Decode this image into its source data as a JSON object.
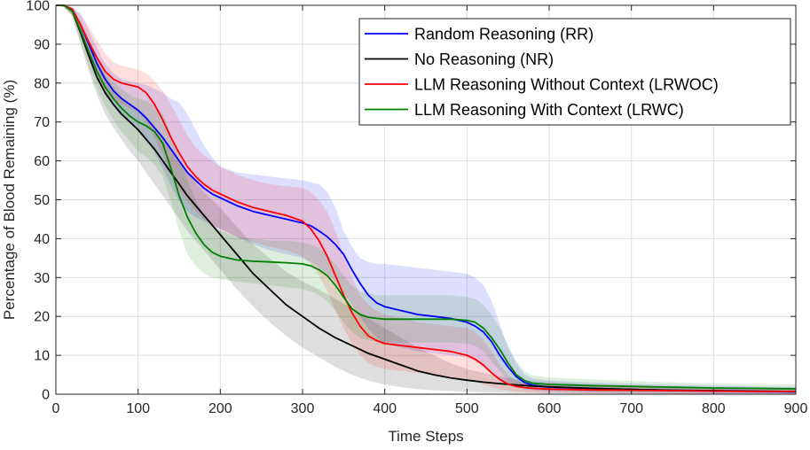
{
  "chart_data": {
    "type": "line",
    "title": "",
    "xlabel": "Time Steps",
    "ylabel": "Percentage of Blood Remaining (%)",
    "xlim": [
      0,
      900
    ],
    "ylim": [
      0,
      100
    ],
    "x_ticks": [
      0,
      100,
      200,
      300,
      400,
      500,
      600,
      700,
      800,
      900
    ],
    "y_ticks": [
      0,
      10,
      20,
      30,
      40,
      50,
      60,
      70,
      80,
      90,
      100
    ],
    "grid": true,
    "legend_position": "top-right",
    "shaded_bands": true,
    "series": [
      {
        "name": "Random Reasoning (RR)",
        "color": "#0000ff",
        "x": [
          0,
          10,
          20,
          30,
          40,
          50,
          60,
          70,
          80,
          90,
          100,
          110,
          120,
          130,
          140,
          150,
          160,
          170,
          180,
          190,
          200,
          220,
          240,
          260,
          280,
          300,
          310,
          320,
          330,
          340,
          350,
          360,
          370,
          380,
          390,
          400,
          420,
          440,
          460,
          480,
          500,
          510,
          520,
          530,
          540,
          550,
          560,
          570,
          580,
          600,
          650,
          700,
          750,
          800,
          850,
          900
        ],
        "y": [
          100,
          100,
          99,
          95,
          90,
          85,
          81,
          78,
          76,
          74.5,
          73,
          71,
          68.5,
          66,
          63,
          60,
          57,
          55,
          53,
          51.5,
          50.5,
          48.5,
          47,
          46,
          45,
          44,
          43.3,
          42,
          40.5,
          38.5,
          36,
          32,
          28.5,
          25.5,
          23.5,
          22.5,
          21.5,
          20.5,
          20,
          19.5,
          18.5,
          17.5,
          16,
          13.5,
          10,
          7,
          4.5,
          3,
          2.3,
          1.8,
          1.5,
          1.2,
          1,
          0.8,
          0.7,
          0.6
        ],
        "upper": [
          100,
          100,
          99.5,
          98,
          93.5,
          89,
          85,
          82.5,
          81,
          80.5,
          80,
          79.5,
          78.5,
          77.5,
          76,
          75,
          72,
          68,
          64,
          61,
          58.5,
          57,
          56.5,
          56,
          55.5,
          55,
          54.5,
          54,
          52,
          48,
          42,
          38,
          35,
          34,
          33.5,
          33.5,
          33,
          32.5,
          32,
          31.5,
          31,
          30,
          28,
          24,
          18,
          12,
          8,
          5,
          4,
          3.5,
          3,
          2.7,
          2.4,
          2.2,
          2,
          1.8
        ],
        "lower": [
          100,
          100,
          98,
          92,
          86.5,
          81,
          77,
          74,
          71.5,
          70,
          68.5,
          65.5,
          62,
          58,
          53.5,
          49.5,
          47,
          45.5,
          44.5,
          43.5,
          42.5,
          40.5,
          38.5,
          37,
          36,
          35,
          34,
          32.5,
          31,
          29,
          26,
          23,
          20,
          17,
          14.5,
          13,
          12,
          11,
          10.5,
          10,
          9.5,
          8.5,
          7,
          5,
          3.5,
          2.5,
          1.8,
          1.4,
          1,
          0.7,
          0.4,
          0.3,
          0.2,
          0.1,
          0.1,
          0.1
        ]
      },
      {
        "name": "No Reasoning (NR)",
        "color": "#000000",
        "x": [
          0,
          10,
          20,
          30,
          40,
          50,
          60,
          70,
          80,
          90,
          100,
          110,
          120,
          130,
          140,
          150,
          160,
          170,
          180,
          190,
          200,
          220,
          240,
          260,
          280,
          300,
          320,
          340,
          360,
          380,
          400,
          420,
          440,
          460,
          480,
          500,
          520,
          540,
          560,
          580,
          600,
          650,
          700,
          750,
          800,
          850,
          900
        ],
        "y": [
          100,
          100,
          98.5,
          93,
          87,
          81.5,
          77.5,
          74.5,
          72,
          70,
          68,
          65.5,
          63,
          60,
          57,
          54,
          51,
          48.5,
          46,
          43.5,
          41,
          36,
          31,
          27,
          23,
          20,
          17,
          14.5,
          12.5,
          10.5,
          9,
          7.5,
          6,
          5,
          4.2,
          3.6,
          3.1,
          2.7,
          2.4,
          2.1,
          1.9,
          1.5,
          1.2,
          1,
          0.9,
          0.8,
          0.7
        ],
        "upper": [
          100,
          100,
          99,
          95.5,
          91,
          86,
          82,
          79,
          76.5,
          74.5,
          73,
          71,
          68.5,
          66,
          63,
          60,
          57,
          54.5,
          52,
          50,
          48,
          43,
          38.5,
          35,
          31.5,
          29,
          27,
          24.5,
          22,
          19.5,
          17,
          14.5,
          12,
          10,
          8,
          6.5,
          5.5,
          4.5,
          3.8,
          3.3,
          3,
          2.5,
          2.1,
          1.8,
          1.6,
          1.4,
          1.3
        ],
        "lower": [
          100,
          99.5,
          97,
          90,
          83,
          77,
          72,
          68.5,
          65.5,
          62.5,
          60,
          57,
          54,
          51,
          48,
          45,
          42,
          39.5,
          37,
          34.5,
          32,
          27,
          22.5,
          18.5,
          15,
          12,
          9.5,
          7,
          5,
          3.5,
          2.5,
          1.8,
          1.3,
          1,
          0.8,
          0.6,
          0.5,
          0.4,
          0.3,
          0.3,
          0.2,
          0.2,
          0.1,
          0.1,
          0.1,
          0.1,
          0.1
        ]
      },
      {
        "name": "LLM Reasoning Without Context (LRWOC)",
        "color": "#ff0000",
        "x": [
          0,
          10,
          20,
          30,
          40,
          50,
          60,
          70,
          80,
          90,
          100,
          110,
          120,
          130,
          140,
          150,
          160,
          170,
          180,
          190,
          200,
          220,
          240,
          260,
          280,
          300,
          310,
          320,
          330,
          340,
          350,
          360,
          370,
          380,
          390,
          400,
          420,
          440,
          460,
          480,
          500,
          510,
          520,
          530,
          540,
          550,
          560,
          570,
          580,
          600,
          650,
          700,
          750,
          800,
          850,
          900
        ],
        "y": [
          100,
          100,
          99,
          95,
          90.5,
          86.5,
          83,
          81,
          80,
          79.5,
          79,
          77.5,
          74.5,
          70.5,
          66,
          62,
          58.5,
          56,
          54,
          52.5,
          51.5,
          49.5,
          48,
          47,
          46,
          44.5,
          42.5,
          39.5,
          35.5,
          30.5,
          25.5,
          21,
          17.5,
          15,
          13.8,
          13,
          12.5,
          12,
          11.5,
          11,
          10,
          9,
          7.5,
          5.5,
          3.8,
          2.6,
          2,
          1.7,
          1.5,
          1.3,
          1.1,
          1,
          0.9,
          0.8,
          0.7,
          0.7
        ],
        "upper": [
          100,
          100,
          99.5,
          97.5,
          94.5,
          91,
          87.5,
          85.5,
          84.5,
          84,
          83.5,
          82.5,
          80.5,
          78,
          74.5,
          70.5,
          66.5,
          63.5,
          61.5,
          60,
          58.5,
          56.5,
          55,
          54,
          53.5,
          53,
          52,
          50,
          47,
          42,
          36,
          30,
          25.5,
          23,
          21.5,
          20.5,
          19.5,
          18.5,
          18,
          17.5,
          17,
          16,
          14,
          11,
          7.5,
          5,
          3.5,
          2.8,
          2.4,
          2.2,
          2,
          1.8,
          1.6,
          1.5,
          1.4,
          1.3
        ],
        "lower": [
          100,
          99.5,
          97.5,
          92,
          86,
          81,
          77.5,
          75.5,
          74.5,
          73.5,
          72.5,
          70,
          66,
          61.5,
          56.5,
          52.5,
          49.5,
          47,
          45,
          43.5,
          42.5,
          40.5,
          39,
          38,
          37,
          35.5,
          33.5,
          30.5,
          26.5,
          21.5,
          17,
          13,
          10,
          8,
          7,
          6.5,
          6,
          5.5,
          5,
          4.5,
          3.8,
          3.2,
          2.5,
          1.8,
          1.3,
          0.9,
          0.7,
          0.5,
          0.4,
          0.3,
          0.2,
          0.2,
          0.1,
          0.1,
          0.1,
          0.1
        ]
      },
      {
        "name": "LLM Reasoning With Context (LRWC)",
        "color": "#008000",
        "x": [
          0,
          10,
          20,
          30,
          40,
          50,
          60,
          70,
          80,
          90,
          100,
          110,
          120,
          130,
          140,
          150,
          160,
          170,
          180,
          190,
          200,
          220,
          240,
          260,
          280,
          300,
          310,
          320,
          330,
          340,
          350,
          360,
          370,
          380,
          390,
          400,
          420,
          440,
          460,
          480,
          500,
          510,
          520,
          530,
          540,
          550,
          560,
          570,
          580,
          600,
          650,
          700,
          750,
          800,
          850,
          900
        ],
        "y": [
          100,
          100,
          98.5,
          93.5,
          88,
          83,
          79,
          76,
          73.5,
          71.5,
          70,
          69,
          67.5,
          64.5,
          58,
          51,
          45.5,
          41.5,
          38.5,
          36.5,
          35.5,
          34.5,
          34.2,
          34,
          33.8,
          33.5,
          33,
          32,
          30.5,
          28,
          25,
          22,
          20.5,
          19.8,
          19.5,
          19.3,
          19.3,
          19.3,
          19.3,
          19.3,
          19,
          18.5,
          17,
          14.5,
          11.5,
          8,
          5,
          3.5,
          2.8,
          2.5,
          2.2,
          2,
          1.8,
          1.6,
          1.5,
          1.4
        ],
        "upper": [
          100,
          100,
          99,
          96,
          91.5,
          87,
          83,
          80.5,
          78.5,
          77,
          76,
          75.5,
          74,
          72,
          67,
          61,
          55,
          50,
          46,
          43.5,
          42,
          40.5,
          40,
          39.5,
          39.5,
          39,
          38.5,
          37.5,
          36,
          33.5,
          30.5,
          28,
          26.5,
          26,
          25.5,
          25.5,
          25.5,
          25.5,
          25.5,
          25.5,
          25,
          24.5,
          23,
          20.5,
          17,
          12.5,
          8.5,
          6,
          4.8,
          4.3,
          3.8,
          3.4,
          3,
          2.8,
          2.6,
          2.5
        ],
        "lower": [
          100,
          99.5,
          97.5,
          90.5,
          84,
          78.5,
          74,
          70.5,
          67.5,
          65,
          62.5,
          61,
          59,
          56,
          49.5,
          42,
          36,
          33,
          31,
          30,
          29.5,
          29,
          28.5,
          28,
          27.5,
          27,
          26.5,
          25.5,
          24,
          21.5,
          18.5,
          16,
          14.5,
          13.8,
          13.5,
          13.3,
          13.3,
          13.3,
          13.3,
          13.3,
          13,
          12.5,
          11,
          8.5,
          6,
          3.5,
          2,
          1.5,
          1.2,
          1,
          0.8,
          0.7,
          0.6,
          0.5,
          0.4,
          0.4
        ]
      }
    ]
  }
}
